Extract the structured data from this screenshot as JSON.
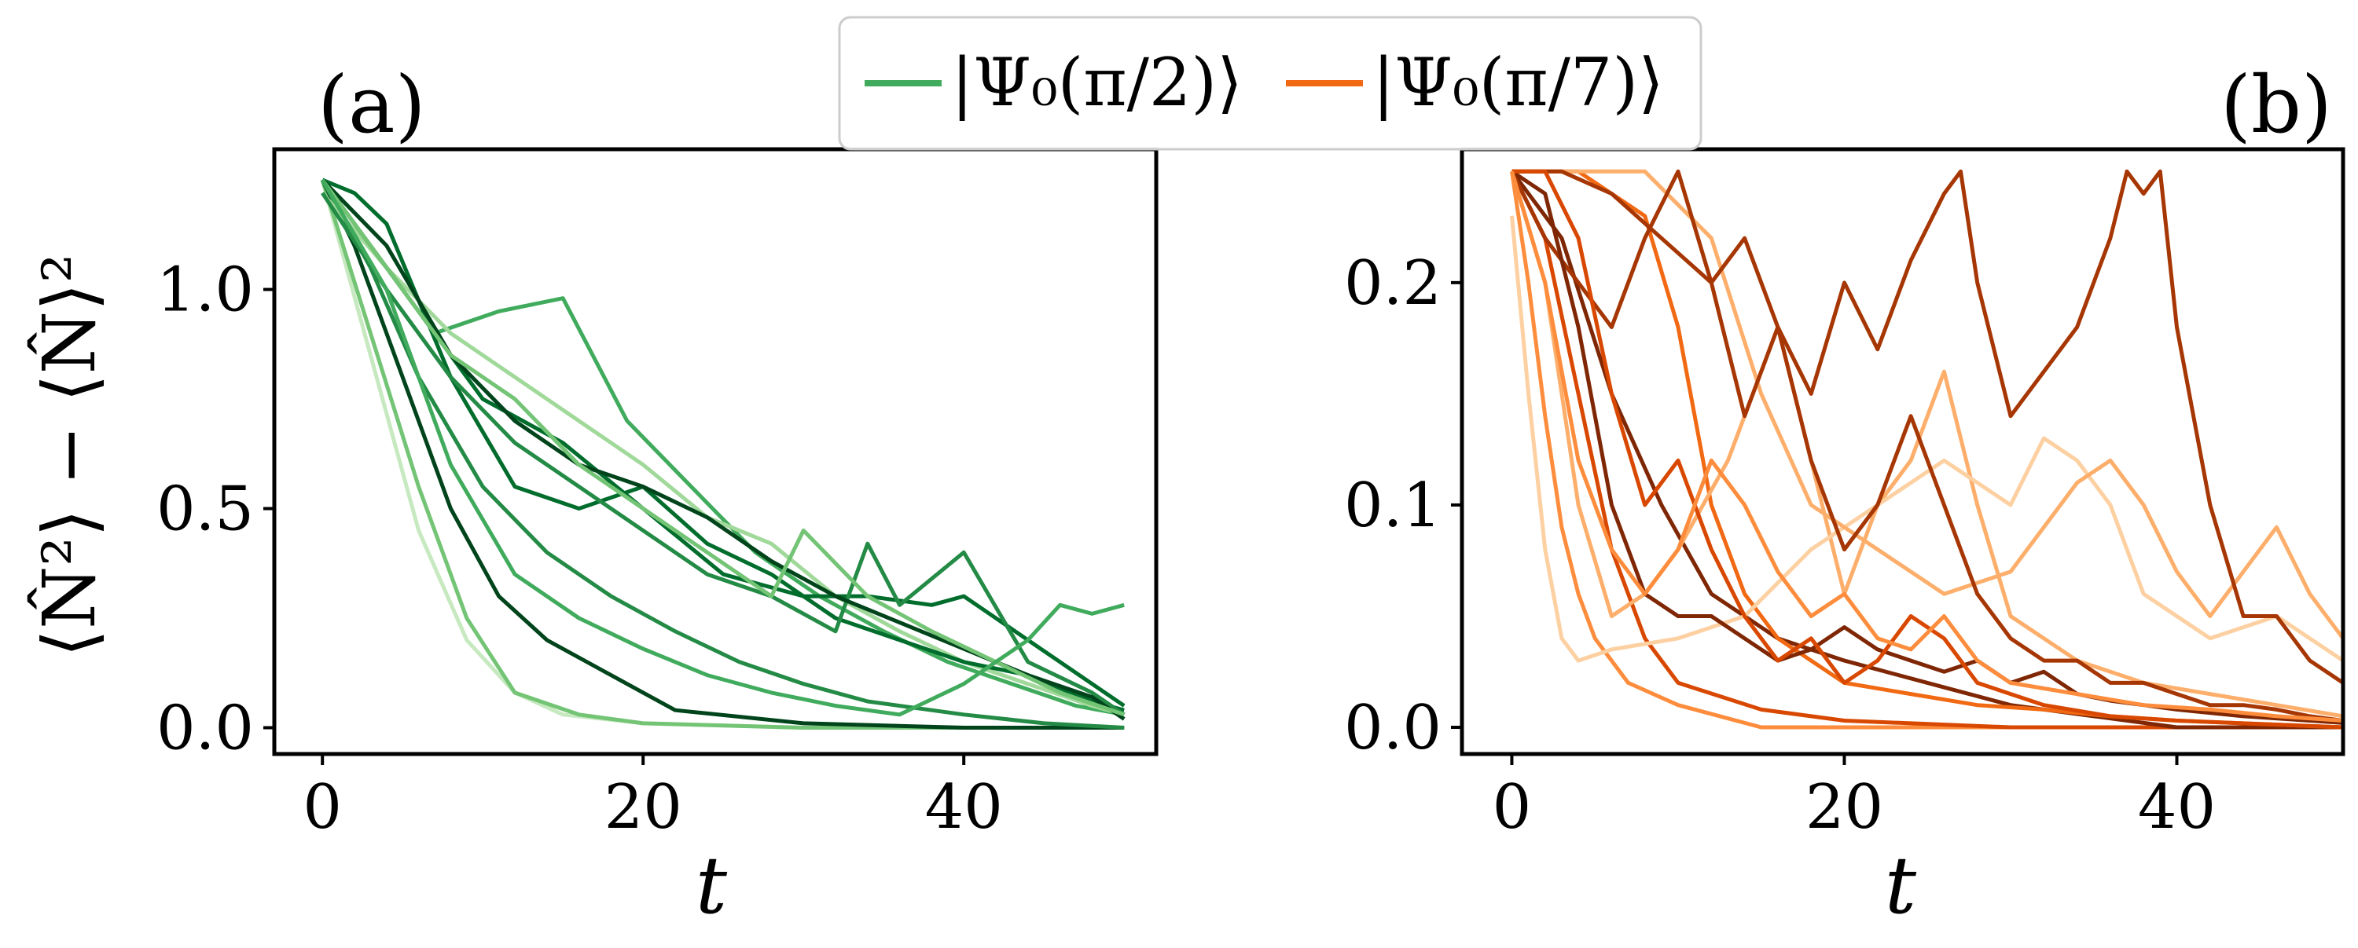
{
  "ylabel": "⟨N̂²⟩ − ⟨N̂⟩²",
  "legend": [
    {
      "label": "|Ψ₀(π/2)⟩",
      "color": "#41ab5d"
    },
    {
      "label": "|Ψ₀(π/7)⟩",
      "color": "#f16913"
    }
  ],
  "chart_data": [
    {
      "type": "line",
      "panel_label": "(a)",
      "title": "",
      "xlabel": "t",
      "ylabel": "⟨N̂²⟩ − ⟨N̂⟩²",
      "xlim": [
        -3,
        52
      ],
      "ylim": [
        -0.06,
        1.32
      ],
      "xticks": [
        0,
        20,
        40
      ],
      "xtick_labels": [
        "0",
        "20",
        "40"
      ],
      "yticks": [
        0.0,
        0.5,
        1.0
      ],
      "ytick_labels": [
        "0.0",
        "0.5",
        "1.0"
      ],
      "colormap": "Greens",
      "colors": [
        "#c7e9c0",
        "#a1d99b",
        "#74c476",
        "#41ab5d",
        "#238b45",
        "#006d2c",
        "#00441b"
      ],
      "series": [
        {
          "color": "#c7e9c0",
          "x": [
            0,
            3,
            6,
            9,
            12,
            15,
            20,
            30,
            40,
            50
          ],
          "y": [
            1.25,
            0.85,
            0.45,
            0.2,
            0.08,
            0.03,
            0.01,
            0.0,
            0.0,
            0.0
          ]
        },
        {
          "color": "#74c476",
          "x": [
            0,
            3,
            6,
            9,
            12,
            16,
            20,
            30,
            40,
            50
          ],
          "y": [
            1.25,
            0.9,
            0.55,
            0.25,
            0.08,
            0.03,
            0.01,
            0.0,
            0.0,
            0.0
          ]
        },
        {
          "color": "#00441b",
          "x": [
            0,
            2,
            5,
            8,
            11,
            14,
            18,
            22,
            30,
            40,
            50
          ],
          "y": [
            1.25,
            1.1,
            0.8,
            0.5,
            0.3,
            0.2,
            0.12,
            0.04,
            0.01,
            0.0,
            0.0
          ]
        },
        {
          "color": "#238b45",
          "x": [
            0,
            3,
            6,
            10,
            14,
            18,
            22,
            26,
            30,
            34,
            40,
            45,
            50
          ],
          "y": [
            1.25,
            1.05,
            0.8,
            0.55,
            0.4,
            0.3,
            0.22,
            0.15,
            0.1,
            0.06,
            0.03,
            0.01,
            0.0
          ]
        },
        {
          "color": "#41ab5d",
          "x": [
            0,
            3,
            7,
            11,
            15,
            19,
            23,
            27,
            31,
            35,
            39,
            43,
            47,
            50
          ],
          "y": [
            1.25,
            1.1,
            0.9,
            0.95,
            0.98,
            0.7,
            0.55,
            0.4,
            0.3,
            0.22,
            0.15,
            0.1,
            0.05,
            0.03
          ]
        },
        {
          "color": "#a1d99b",
          "x": [
            0,
            4,
            8,
            12,
            16,
            20,
            24,
            28,
            32,
            36,
            40,
            44,
            48,
            50
          ],
          "y": [
            1.22,
            1.05,
            0.9,
            0.8,
            0.7,
            0.6,
            0.48,
            0.42,
            0.3,
            0.22,
            0.15,
            0.1,
            0.05,
            0.03
          ]
        },
        {
          "color": "#006d2c",
          "x": [
            0,
            2,
            4,
            8,
            12,
            16,
            20,
            24,
            28,
            32,
            36,
            40,
            44,
            48,
            50
          ],
          "y": [
            1.25,
            1.22,
            1.15,
            0.8,
            0.55,
            0.5,
            0.55,
            0.42,
            0.35,
            0.25,
            0.2,
            0.15,
            0.12,
            0.06,
            0.04
          ]
        },
        {
          "color": "#006d2c",
          "x": [
            0,
            5,
            10,
            15,
            20,
            25,
            30,
            34,
            38,
            40,
            44,
            48,
            50
          ],
          "y": [
            1.25,
            1.0,
            0.75,
            0.65,
            0.5,
            0.35,
            0.3,
            0.3,
            0.28,
            0.3,
            0.2,
            0.1,
            0.05
          ]
        },
        {
          "color": "#238b45",
          "x": [
            0,
            4,
            8,
            12,
            16,
            20,
            24,
            28,
            32,
            34,
            36,
            40,
            44,
            48,
            50
          ],
          "y": [
            1.22,
            1.0,
            0.8,
            0.65,
            0.55,
            0.45,
            0.35,
            0.3,
            0.22,
            0.42,
            0.28,
            0.4,
            0.15,
            0.08,
            0.03
          ]
        },
        {
          "color": "#00441b",
          "x": [
            0,
            4,
            8,
            12,
            16,
            20,
            24,
            28,
            32,
            36,
            40,
            44,
            48,
            50
          ],
          "y": [
            1.25,
            1.1,
            0.85,
            0.7,
            0.6,
            0.55,
            0.48,
            0.38,
            0.3,
            0.24,
            0.18,
            0.12,
            0.07,
            0.02
          ]
        },
        {
          "color": "#74c476",
          "x": [
            0,
            4,
            8,
            12,
            16,
            20,
            24,
            28,
            30,
            34,
            38,
            42,
            46,
            50
          ],
          "y": [
            1.25,
            1.05,
            0.85,
            0.75,
            0.6,
            0.5,
            0.4,
            0.3,
            0.45,
            0.3,
            0.22,
            0.15,
            0.08,
            0.03
          ]
        },
        {
          "color": "#41ab5d",
          "x": [
            0,
            4,
            8,
            12,
            16,
            20,
            24,
            28,
            32,
            36,
            40,
            44,
            46,
            48,
            50
          ],
          "y": [
            1.25,
            1.0,
            0.6,
            0.35,
            0.25,
            0.18,
            0.12,
            0.08,
            0.05,
            0.03,
            0.1,
            0.2,
            0.28,
            0.26,
            0.28
          ]
        }
      ]
    },
    {
      "type": "line",
      "panel_label": "(b)",
      "title": "",
      "xlabel": "t",
      "ylabel": "",
      "xlim": [
        -3,
        50
      ],
      "ylim": [
        -0.012,
        0.26
      ],
      "xticks": [
        0,
        20,
        40
      ],
      "xtick_labels": [
        "0",
        "20",
        "40"
      ],
      "yticks": [
        0.0,
        0.1,
        0.2
      ],
      "ytick_labels": [
        "0.0",
        "0.1",
        "0.2"
      ],
      "colormap": "Oranges",
      "colors": [
        "#fdd0a2",
        "#fdae6b",
        "#fd8d3c",
        "#f16913",
        "#d94801",
        "#a63603",
        "#7f2704"
      ],
      "series": [
        {
          "color": "#fd8d3c",
          "x": [
            0,
            1,
            2,
            3,
            4,
            5,
            7,
            10,
            15,
            25,
            50
          ],
          "y": [
            0.25,
            0.2,
            0.14,
            0.09,
            0.06,
            0.04,
            0.02,
            0.01,
            0.0,
            0.0,
            0.0
          ]
        },
        {
          "color": "#d94801",
          "x": [
            0,
            2,
            4,
            6,
            8,
            10,
            15,
            20,
            30,
            50
          ],
          "y": [
            0.25,
            0.22,
            0.15,
            0.08,
            0.04,
            0.02,
            0.008,
            0.003,
            0.0,
            0.0
          ]
        },
        {
          "color": "#7f2704",
          "x": [
            0,
            3,
            6,
            9,
            12,
            16,
            20,
            25,
            30,
            40,
            50
          ],
          "y": [
            0.25,
            0.22,
            0.15,
            0.1,
            0.06,
            0.04,
            0.03,
            0.02,
            0.01,
            0.0,
            0.0
          ]
        },
        {
          "color": "#f16913",
          "x": [
            0,
            4,
            8,
            10,
            12,
            14,
            16,
            18,
            20,
            24,
            28,
            32,
            36,
            40,
            50
          ],
          "y": [
            0.25,
            0.25,
            0.23,
            0.18,
            0.1,
            0.06,
            0.04,
            0.03,
            0.02,
            0.015,
            0.01,
            0.008,
            0.005,
            0.003,
            0.0
          ]
        },
        {
          "color": "#fdae6b",
          "x": [
            0,
            2,
            4,
            6,
            8,
            10,
            13,
            16,
            18,
            20,
            22,
            24,
            26,
            28,
            30,
            34,
            38,
            42,
            46,
            50
          ],
          "y": [
            0.25,
            0.2,
            0.1,
            0.05,
            0.06,
            0.08,
            0.12,
            0.18,
            0.12,
            0.06,
            0.1,
            0.12,
            0.16,
            0.1,
            0.05,
            0.03,
            0.02,
            0.015,
            0.01,
            0.005
          ]
        },
        {
          "color": "#fdd0a2",
          "x": [
            0,
            1,
            2,
            3,
            4,
            6,
            10,
            14,
            18,
            22,
            26,
            30,
            32,
            34,
            36,
            38,
            42,
            46,
            50
          ],
          "y": [
            0.23,
            0.15,
            0.08,
            0.04,
            0.03,
            0.035,
            0.04,
            0.05,
            0.08,
            0.1,
            0.12,
            0.1,
            0.13,
            0.12,
            0.1,
            0.06,
            0.04,
            0.05,
            0.03
          ]
        },
        {
          "color": "#fdae6b",
          "x": [
            0,
            4,
            8,
            12,
            15,
            18,
            22,
            26,
            30,
            32,
            34,
            36,
            38,
            40,
            42,
            44,
            46,
            48,
            50
          ],
          "y": [
            0.25,
            0.25,
            0.25,
            0.22,
            0.15,
            0.1,
            0.08,
            0.06,
            0.07,
            0.09,
            0.11,
            0.12,
            0.1,
            0.07,
            0.05,
            0.07,
            0.09,
            0.06,
            0.04
          ]
        },
        {
          "color": "#a63603",
          "x": [
            0,
            3,
            6,
            9,
            12,
            14,
            16,
            18,
            20,
            22,
            24,
            26,
            28,
            30,
            32,
            34,
            36,
            38,
            40,
            42,
            44,
            46,
            48,
            50
          ],
          "y": [
            0.25,
            0.25,
            0.24,
            0.22,
            0.2,
            0.22,
            0.18,
            0.12,
            0.08,
            0.1,
            0.14,
            0.1,
            0.06,
            0.04,
            0.03,
            0.03,
            0.02,
            0.02,
            0.015,
            0.01,
            0.01,
            0.008,
            0.005,
            0.003
          ]
        },
        {
          "color": "#a63603",
          "x": [
            0,
            2,
            4,
            6,
            8,
            10,
            12,
            14,
            16,
            18,
            20,
            22,
            24,
            26,
            27,
            28,
            30,
            32,
            34,
            36,
            37,
            38,
            39,
            40,
            42,
            44,
            46,
            48,
            50
          ],
          "y": [
            0.25,
            0.22,
            0.2,
            0.18,
            0.22,
            0.25,
            0.2,
            0.14,
            0.18,
            0.15,
            0.2,
            0.17,
            0.21,
            0.24,
            0.25,
            0.2,
            0.14,
            0.16,
            0.18,
            0.22,
            0.25,
            0.24,
            0.25,
            0.18,
            0.1,
            0.05,
            0.05,
            0.03,
            0.02
          ]
        },
        {
          "color": "#7f2704",
          "x": [
            0,
            2,
            4,
            6,
            8,
            10,
            12,
            14,
            16,
            18,
            20,
            22,
            24,
            26,
            28,
            30,
            32,
            34,
            36,
            38,
            40,
            44,
            48,
            50
          ],
          "y": [
            0.25,
            0.24,
            0.18,
            0.1,
            0.06,
            0.05,
            0.05,
            0.04,
            0.03,
            0.035,
            0.045,
            0.035,
            0.03,
            0.025,
            0.03,
            0.02,
            0.025,
            0.015,
            0.012,
            0.01,
            0.008,
            0.005,
            0.003,
            0.002
          ]
        },
        {
          "color": "#d94801",
          "x": [
            0,
            2,
            4,
            6,
            8,
            10,
            12,
            14,
            16,
            18,
            20,
            22,
            24,
            26,
            28,
            30,
            32,
            36,
            40,
            50
          ],
          "y": [
            0.25,
            0.25,
            0.22,
            0.15,
            0.1,
            0.12,
            0.08,
            0.05,
            0.03,
            0.04,
            0.02,
            0.03,
            0.05,
            0.04,
            0.02,
            0.015,
            0.01,
            0.005,
            0.003,
            0.0
          ]
        },
        {
          "color": "#fd8d3c",
          "x": [
            0,
            2,
            4,
            6,
            8,
            10,
            12,
            14,
            16,
            18,
            20,
            22,
            24,
            26,
            28,
            30,
            34,
            38,
            42,
            46,
            50
          ],
          "y": [
            0.25,
            0.2,
            0.12,
            0.08,
            0.06,
            0.08,
            0.12,
            0.1,
            0.07,
            0.05,
            0.06,
            0.04,
            0.035,
            0.05,
            0.03,
            0.02,
            0.015,
            0.01,
            0.008,
            0.005,
            0.003
          ]
        }
      ]
    }
  ]
}
